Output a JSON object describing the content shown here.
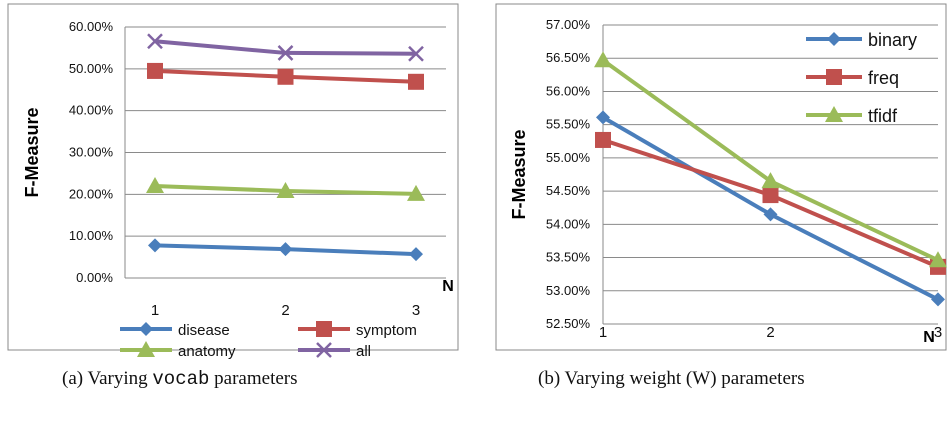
{
  "figure": {
    "caption_a": {
      "prefix": "(a)  Varying ",
      "code": "vocab",
      "suffix": " parameters"
    },
    "caption_b": "(b)  Varying weight (W) parameters"
  },
  "chart_data": [
    {
      "type": "line",
      "ylabel": "F-Measure",
      "xlabel": "N",
      "x": [
        1,
        2,
        3
      ],
      "ylim": [
        0,
        0.6
      ],
      "yticks": [
        "0.00%",
        "10.00%",
        "20.00%",
        "30.00%",
        "40.00%",
        "50.00%",
        "60.00%"
      ],
      "grid": true,
      "legend": "bottom",
      "series": [
        {
          "name": "disease",
          "values": [
            0.078,
            0.069,
            0.057
          ],
          "color": "#4A7EBB",
          "marker": "diamond"
        },
        {
          "name": "symptom",
          "values": [
            0.495,
            0.481,
            0.469
          ],
          "color": "#C0504D",
          "marker": "square"
        },
        {
          "name": "anatomy",
          "values": [
            0.22,
            0.208,
            0.201
          ],
          "color": "#9BBB59",
          "marker": "triangle"
        },
        {
          "name": "all",
          "values": [
            0.566,
            0.538,
            0.536
          ],
          "color": "#8064A2",
          "marker": "x"
        }
      ]
    },
    {
      "type": "line",
      "ylabel": "F-Measure",
      "xlabel": "N",
      "x": [
        1,
        2,
        3
      ],
      "ylim": [
        0.525,
        0.57
      ],
      "yticks": [
        "52.50%",
        "53.00%",
        "53.50%",
        "54.00%",
        "54.50%",
        "55.00%",
        "55.50%",
        "56.00%",
        "56.50%",
        "57.00%"
      ],
      "grid": true,
      "legend": "top-right",
      "series": [
        {
          "name": "binary",
          "values": [
            0.5561,
            0.5415,
            0.5287
          ],
          "color": "#4A7EBB",
          "marker": "diamond"
        },
        {
          "name": "freq",
          "values": [
            0.5527,
            0.5444,
            0.5336
          ],
          "color": "#C0504D",
          "marker": "square"
        },
        {
          "name": "tfidf",
          "values": [
            0.5647,
            0.5465,
            0.5346
          ],
          "color": "#9BBB59",
          "marker": "triangle"
        }
      ]
    }
  ]
}
